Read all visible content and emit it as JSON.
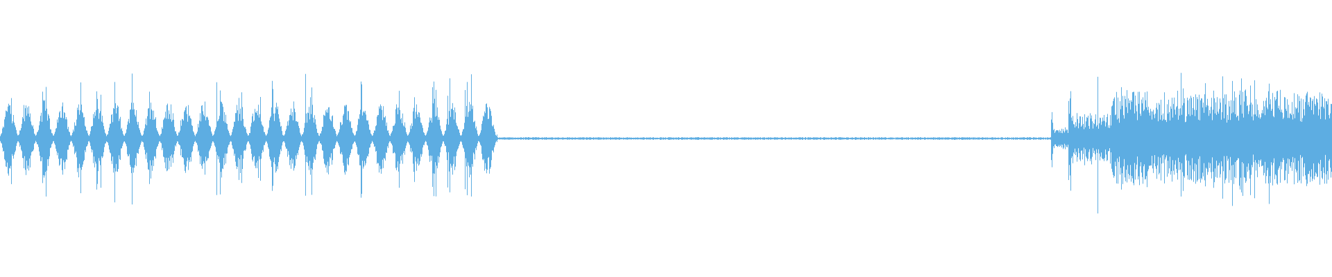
{
  "waveform": {
    "color": "#5dade2",
    "background": "#ffffff",
    "segments": [
      {
        "kind": "rhythmic-bursts",
        "start": 0.0,
        "end": 0.373,
        "burst_period": 0.0133,
        "amplitude": 0.22,
        "peak_amplitude": 0.5
      },
      {
        "kind": "near-silence",
        "start": 0.373,
        "end": 0.789,
        "amplitude": 0.006
      },
      {
        "kind": "transients-onset",
        "start": 0.789,
        "end": 0.834,
        "amplitude": 0.15,
        "peak_amplitude": 0.55
      },
      {
        "kind": "dense-noise",
        "start": 0.834,
        "end": 1.0,
        "amplitude": 0.3,
        "peak_amplitude": 0.5
      }
    ]
  }
}
